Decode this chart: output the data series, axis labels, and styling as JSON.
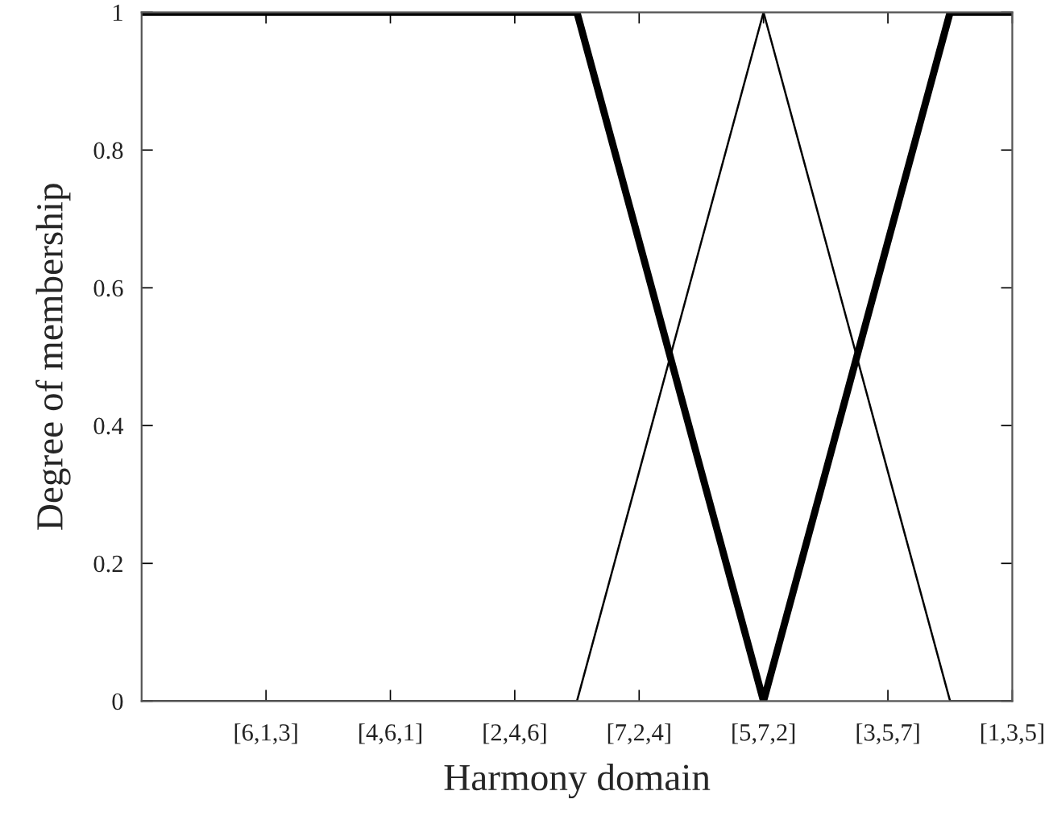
{
  "chart_data": {
    "type": "line",
    "xlabel": "Harmony domain",
    "ylabel": "Degree of membership",
    "categories": [
      null,
      null,
      "[6,1,3]",
      null,
      "[4,6,1]",
      null,
      "[2,4,6]",
      null,
      "[7,2,4]",
      null,
      "[5,7,2]",
      null,
      "[3,5,7]",
      null,
      "[1,3,5]"
    ],
    "ylim": [
      0,
      1
    ],
    "yticks": [
      0,
      {
        "value": 0.2,
        "label": "0.2"
      },
      {
        "value": 0.4,
        "label": "0.4"
      },
      {
        "value": 0.6,
        "label": "0.6"
      },
      {
        "value": 0.8,
        "label": "0.8"
      },
      1
    ],
    "grid": false,
    "legend": false,
    "marker": "none",
    "line_style": "solid",
    "series": [
      {
        "color": "#000000",
        "values": [
          1,
          1,
          1,
          1,
          1,
          1,
          1,
          1,
          0.667,
          0.333,
          0,
          0.333,
          0.667,
          1,
          1
        ]
      },
      {
        "color": "#000000",
        "values": [
          0,
          0,
          0,
          0,
          0,
          0,
          0,
          0,
          0.333,
          0.667,
          1,
          0.667,
          0.333,
          0,
          0
        ]
      }
    ]
  }
}
